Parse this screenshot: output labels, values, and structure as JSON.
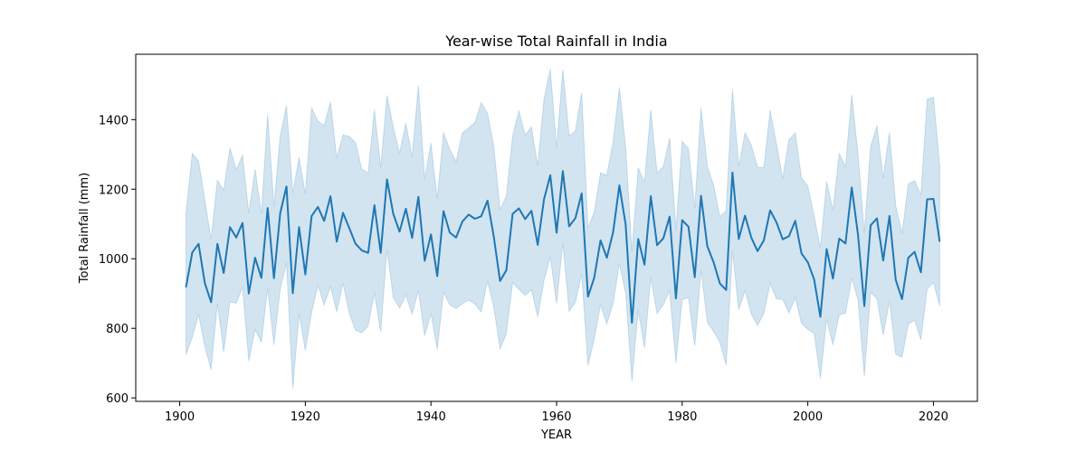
{
  "chart_data": {
    "type": "line",
    "title": "Year-wise Total Rainfall in India",
    "xlabel": "YEAR",
    "ylabel": "Total Rainfall (mm)",
    "xlim": [
      1893,
      2027
    ],
    "ylim": [
      590,
      1588
    ],
    "x_ticks": [
      1900,
      1920,
      1940,
      1960,
      1980,
      2000,
      2020
    ],
    "y_ticks": [
      600,
      800,
      1000,
      1200,
      1400
    ],
    "grid": false,
    "legend": "none",
    "colors": {
      "line": "#1f77b4",
      "band": "#1f77b4"
    },
    "series": [
      {
        "x": [
          1901,
          1902,
          1903,
          1904,
          1905,
          1906,
          1907,
          1908,
          1909,
          1910,
          1911,
          1912,
          1913,
          1914,
          1915,
          1916,
          1917,
          1918,
          1919,
          1920,
          1921,
          1922,
          1923,
          1924,
          1925,
          1926,
          1927,
          1928,
          1929,
          1930,
          1931,
          1932,
          1933,
          1934,
          1935,
          1936,
          1937,
          1938,
          1939,
          1940,
          1941,
          1942,
          1943,
          1944,
          1945,
          1946,
          1947,
          1948,
          1949,
          1950,
          1951,
          1952,
          1953,
          1954,
          1955,
          1956,
          1957,
          1958,
          1959,
          1960,
          1961,
          1962,
          1963,
          1964,
          1965,
          1966,
          1967,
          1968,
          1969,
          1970,
          1971,
          1972,
          1973,
          1974,
          1975,
          1976,
          1977,
          1978,
          1979,
          1980,
          1981,
          1982,
          1983,
          1984,
          1985,
          1986,
          1987,
          1988,
          1989,
          1990,
          1991,
          1992,
          1993,
          1994,
          1995,
          1996,
          1997,
          1998,
          1999,
          2000,
          2001,
          2002,
          2003,
          2004,
          2005,
          2006,
          2007,
          2008,
          2009,
          2010,
          2011,
          2012,
          2013,
          2014,
          2015,
          2016,
          2017,
          2018,
          2019,
          2020,
          2021
        ],
        "y": [
          918,
          1018,
          1043,
          930,
          875,
          1043,
          959,
          1091,
          1061,
          1103,
          900,
          1003,
          945,
          1146,
          944,
          1131,
          1208,
          901,
          1091,
          955,
          1123,
          1149,
          1109,
          1180,
          1049,
          1132,
          1088,
          1043,
          1024,
          1017,
          1154,
          1017,
          1228,
          1129,
          1078,
          1144,
          1060,
          1178,
          994,
          1070,
          950,
          1137,
          1075,
          1061,
          1107,
          1127,
          1115,
          1122,
          1167,
          1064,
          936,
          967,
          1129,
          1145,
          1114,
          1138,
          1040,
          1171,
          1240,
          1075,
          1252,
          1093,
          1117,
          1188,
          891,
          946,
          1053,
          1003,
          1076,
          1211,
          1098,
          816,
          1057,
          983,
          1180,
          1039,
          1059,
          1121,
          886,
          1111,
          1092,
          947,
          1181,
          1036,
          990,
          929,
          910,
          1248,
          1057,
          1124,
          1061,
          1022,
          1053,
          1139,
          1105,
          1056,
          1065,
          1109,
          1015,
          990,
          941,
          833,
          1028,
          943,
          1058,
          1044,
          1205,
          1068,
          864,
          1096,
          1116,
          995,
          1123,
          939,
          884,
          1003,
          1020,
          961,
          1171,
          1172,
          1049
        ],
        "ci_low": [
          725,
          774,
          840,
          748,
          681,
          872,
          732,
          876,
          872,
          919,
          706,
          796,
          760,
          916,
          752,
          913,
          988,
          626,
          841,
          736,
          846,
          924,
          867,
          920,
          847,
          930,
          842,
          794,
          787,
          807,
          902,
          789,
          1026,
          889,
          858,
          895,
          841,
          908,
          778,
          843,
          739,
          904,
          867,
          857,
          871,
          881,
          870,
          847,
          936,
          861,
          741,
          784,
          931,
          912,
          895,
          911,
          833,
          938,
          1005,
          871,
          1046,
          848,
          875,
          957,
          693,
          769,
          868,
          812,
          872,
          986,
          901,
          647,
          853,
          743,
          946,
          842,
          868,
          908,
          700,
          882,
          889,
          750,
          967,
          818,
          791,
          760,
          694,
          1023,
          853,
          908,
          841,
          808,
          843,
          929,
          885,
          883,
          844,
          888,
          814,
          797,
          786,
          656,
          827,
          752,
          838,
          844,
          944,
          882,
          663,
          903,
          886,
          780,
          878,
          725,
          717,
          812,
          824,
          767,
          914,
          931,
          865
        ],
        "ci_high": [
          1130,
          1303,
          1281,
          1169,
          1056,
          1226,
          1197,
          1319,
          1256,
          1298,
          1131,
          1258,
          1130,
          1415,
          1150,
          1354,
          1440,
          1189,
          1292,
          1186,
          1434,
          1396,
          1383,
          1451,
          1290,
          1356,
          1352,
          1334,
          1257,
          1247,
          1428,
          1262,
          1470,
          1379,
          1303,
          1390,
          1292,
          1498,
          1229,
          1333,
          1172,
          1363,
          1314,
          1279,
          1362,
          1376,
          1392,
          1449,
          1419,
          1324,
          1142,
          1180,
          1353,
          1426,
          1355,
          1379,
          1267,
          1460,
          1546,
          1319,
          1544,
          1353,
          1368,
          1478,
          1088,
          1135,
          1247,
          1240,
          1337,
          1493,
          1320,
          1019,
          1262,
          1220,
          1429,
          1247,
          1265,
          1347,
          1082,
          1338,
          1316,
          1144,
          1434,
          1265,
          1212,
          1121,
          1138,
          1488,
          1265,
          1362,
          1327,
          1263,
          1262,
          1427,
          1331,
          1230,
          1342,
          1362,
          1232,
          1209,
          1124,
          1031,
          1222,
          1139,
          1302,
          1265,
          1471,
          1300,
          1074,
          1322,
          1383,
          1232,
          1364,
          1153,
          1073,
          1215,
          1225,
          1183,
          1458,
          1465,
          1270
        ]
      }
    ]
  }
}
